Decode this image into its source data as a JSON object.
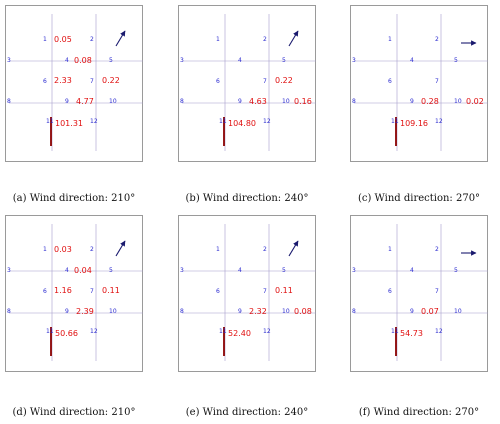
{
  "colors": {
    "grid": "#a39bcc",
    "index": "#2b2bd0",
    "value": "#e01010",
    "arrow": "#1a1a6e",
    "building": "#8b0000"
  },
  "panels": [
    {
      "caption": "(a) Wind direction: 210°",
      "wind_icon": "arrow-up-right-icon",
      "values": {
        "1": "0.05",
        "4": "0.08",
        "6": "2.33",
        "7": "0.22",
        "9": "4.77",
        "11": "101.31"
      }
    },
    {
      "caption": "(b) Wind direction: 240°",
      "wind_icon": "arrow-up-right-icon",
      "values": {
        "7": "0.22",
        "9": "4.63",
        "10": "0.16",
        "11": "104.80"
      }
    },
    {
      "caption": "(c) Wind direction: 270°",
      "wind_icon": "arrow-right-icon",
      "values": {
        "9": "0.28",
        "10": "0.02",
        "11": "109.16"
      }
    },
    {
      "caption": "(d) Wind direction: 210°",
      "wind_icon": "arrow-up-right-icon",
      "values": {
        "1": "0.03",
        "4": "0.04",
        "6": "1.16",
        "7": "0.11",
        "9": "2.39",
        "11": "50.66"
      }
    },
    {
      "caption": "(e) Wind direction: 240°",
      "wind_icon": "arrow-up-right-icon",
      "values": {
        "7": "0.11",
        "9": "2.32",
        "10": "0.08",
        "11": "52.40"
      }
    },
    {
      "caption": "(f) Wind direction: 270°",
      "wind_icon": "arrow-right-icon",
      "values": {
        "9": "0.07",
        "11": "54.73"
      }
    }
  ],
  "cell_indices": [
    "1",
    "2",
    "3",
    "4",
    "5",
    "6",
    "7",
    "8",
    "9",
    "10",
    "11",
    "12"
  ]
}
